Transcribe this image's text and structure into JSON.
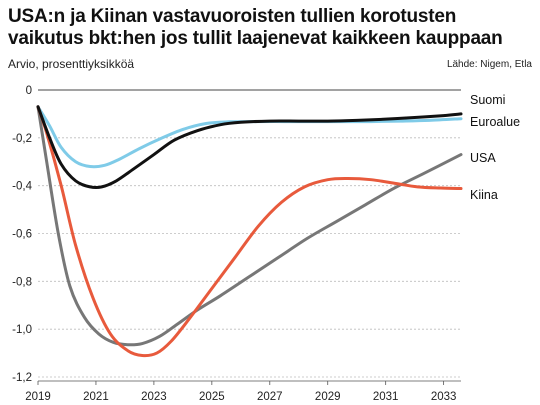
{
  "header": {
    "title_line1": "USA:n ja Kiinan vastavuoroisten tullien korotusten",
    "title_line2": "vaikutus bkt:hen jos tullit laajenevat kaikkeen kauppaan",
    "subtitle": "Arvio, prosenttiyksikköä",
    "source": "Lähde: Nigem, Etla"
  },
  "chart_data": {
    "type": "line",
    "title": "USA:n ja Kiinan vastavuoroisten tullien korotusten vaikutus bkt:hen jos tullit laajenevat kaikkeen kauppaan",
    "subtitle": "Arvio, prosenttiyksikköä",
    "xlabel": "",
    "ylabel": "",
    "xlim": [
      2019,
      2033.6
    ],
    "ylim": [
      -1.2,
      0
    ],
    "xticks": [
      "2019",
      "2021",
      "2023",
      "2025",
      "2027",
      "2029",
      "2031",
      "2033"
    ],
    "yticks": [
      "0",
      "-0,2",
      "-0,4",
      "-0,6",
      "-0,8",
      "-1,0",
      "-1,2"
    ],
    "grid": true,
    "legend": "direct-labels-right",
    "series": [
      {
        "name": "Suomi",
        "color": "#111111",
        "x": [
          2019,
          2019.4,
          2019.8,
          2020.3,
          2020.8,
          2021.2,
          2021.7,
          2022.3,
          2023,
          2023.7,
          2024.5,
          2025.3,
          2026,
          2027,
          2028,
          2029,
          2030,
          2031,
          2032,
          2033,
          2033.6
        ],
        "values": [
          -0.07,
          -0.2,
          -0.31,
          -0.38,
          -0.405,
          -0.405,
          -0.38,
          -0.33,
          -0.27,
          -0.21,
          -0.17,
          -0.145,
          -0.135,
          -0.13,
          -0.13,
          -0.13,
          -0.127,
          -0.122,
          -0.115,
          -0.107,
          -0.1
        ]
      },
      {
        "name": "Euroalue",
        "color": "#7fcbe8",
        "x": [
          2019,
          2019.4,
          2019.8,
          2020.3,
          2020.8,
          2021.3,
          2021.8,
          2022.5,
          2023.2,
          2024,
          2024.8,
          2025.6,
          2026.5,
          2027.5,
          2028.5,
          2029.5,
          2030.5,
          2031.5,
          2032.5,
          2033.6
        ],
        "values": [
          -0.07,
          -0.15,
          -0.24,
          -0.3,
          -0.32,
          -0.315,
          -0.29,
          -0.245,
          -0.205,
          -0.165,
          -0.14,
          -0.133,
          -0.132,
          -0.132,
          -0.132,
          -0.132,
          -0.132,
          -0.13,
          -0.127,
          -0.12
        ]
      },
      {
        "name": "USA",
        "color": "#777777",
        "x": [
          2019,
          2019.3,
          2019.7,
          2020.1,
          2020.6,
          2021.1,
          2021.6,
          2022.1,
          2022.6,
          2023.2,
          2023.8,
          2024.5,
          2025.3,
          2026.3,
          2027.3,
          2028.3,
          2029.3,
          2030.3,
          2031.3,
          2032.3,
          2033.6
        ],
        "values": [
          -0.07,
          -0.3,
          -0.6,
          -0.82,
          -0.95,
          -1.02,
          -1.055,
          -1.065,
          -1.06,
          -1.03,
          -0.98,
          -0.92,
          -0.86,
          -0.78,
          -0.7,
          -0.62,
          -0.55,
          -0.48,
          -0.41,
          -0.35,
          -0.27
        ]
      },
      {
        "name": "Kiina",
        "color": "#e85a3c",
        "x": [
          2019,
          2019.3,
          2019.8,
          2020.3,
          2020.9,
          2021.5,
          2022.1,
          2022.6,
          2023.1,
          2023.6,
          2024.2,
          2025,
          2025.8,
          2026.6,
          2027.4,
          2028.2,
          2029,
          2029.7,
          2030.5,
          2031.3,
          2032.1,
          2032.9,
          2033.6
        ],
        "values": [
          -0.07,
          -0.18,
          -0.4,
          -0.65,
          -0.87,
          -1.02,
          -1.09,
          -1.11,
          -1.1,
          -1.05,
          -0.96,
          -0.83,
          -0.7,
          -0.57,
          -0.47,
          -0.405,
          -0.375,
          -0.37,
          -0.375,
          -0.39,
          -0.405,
          -0.41,
          -0.412
        ]
      }
    ]
  }
}
